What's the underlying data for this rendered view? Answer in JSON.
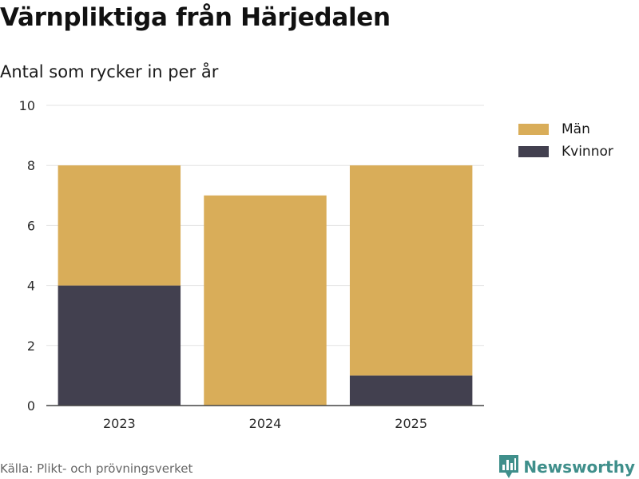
{
  "title": "Värnpliktiga från Härjedalen",
  "subtitle": "Antal som rycker in per år",
  "source": "Källa: Plikt- och prövningsverket",
  "brand": "Newsworthy",
  "colors": {
    "man": "#d9ad59",
    "kvinnor": "#42404f",
    "grid": "#e3e3e3",
    "brand": "#3f8f8b"
  },
  "chart_data": {
    "type": "bar",
    "stacked": true,
    "categories": [
      "2023",
      "2024",
      "2025"
    ],
    "series": [
      {
        "name": "Kvinnor",
        "values": [
          4,
          0,
          1
        ],
        "color": "#42404f"
      },
      {
        "name": "Män",
        "values": [
          4,
          7,
          7
        ],
        "color": "#d9ad59"
      }
    ],
    "legend": [
      {
        "label": "Män",
        "color": "#d9ad59"
      },
      {
        "label": "Kvinnor",
        "color": "#42404f"
      }
    ],
    "yticks": [
      "0",
      "2",
      "4",
      "6",
      "8",
      "10"
    ],
    "ylim": [
      0,
      10
    ],
    "xlabel": "",
    "ylabel": "",
    "grid": true,
    "legend_position": "right"
  }
}
